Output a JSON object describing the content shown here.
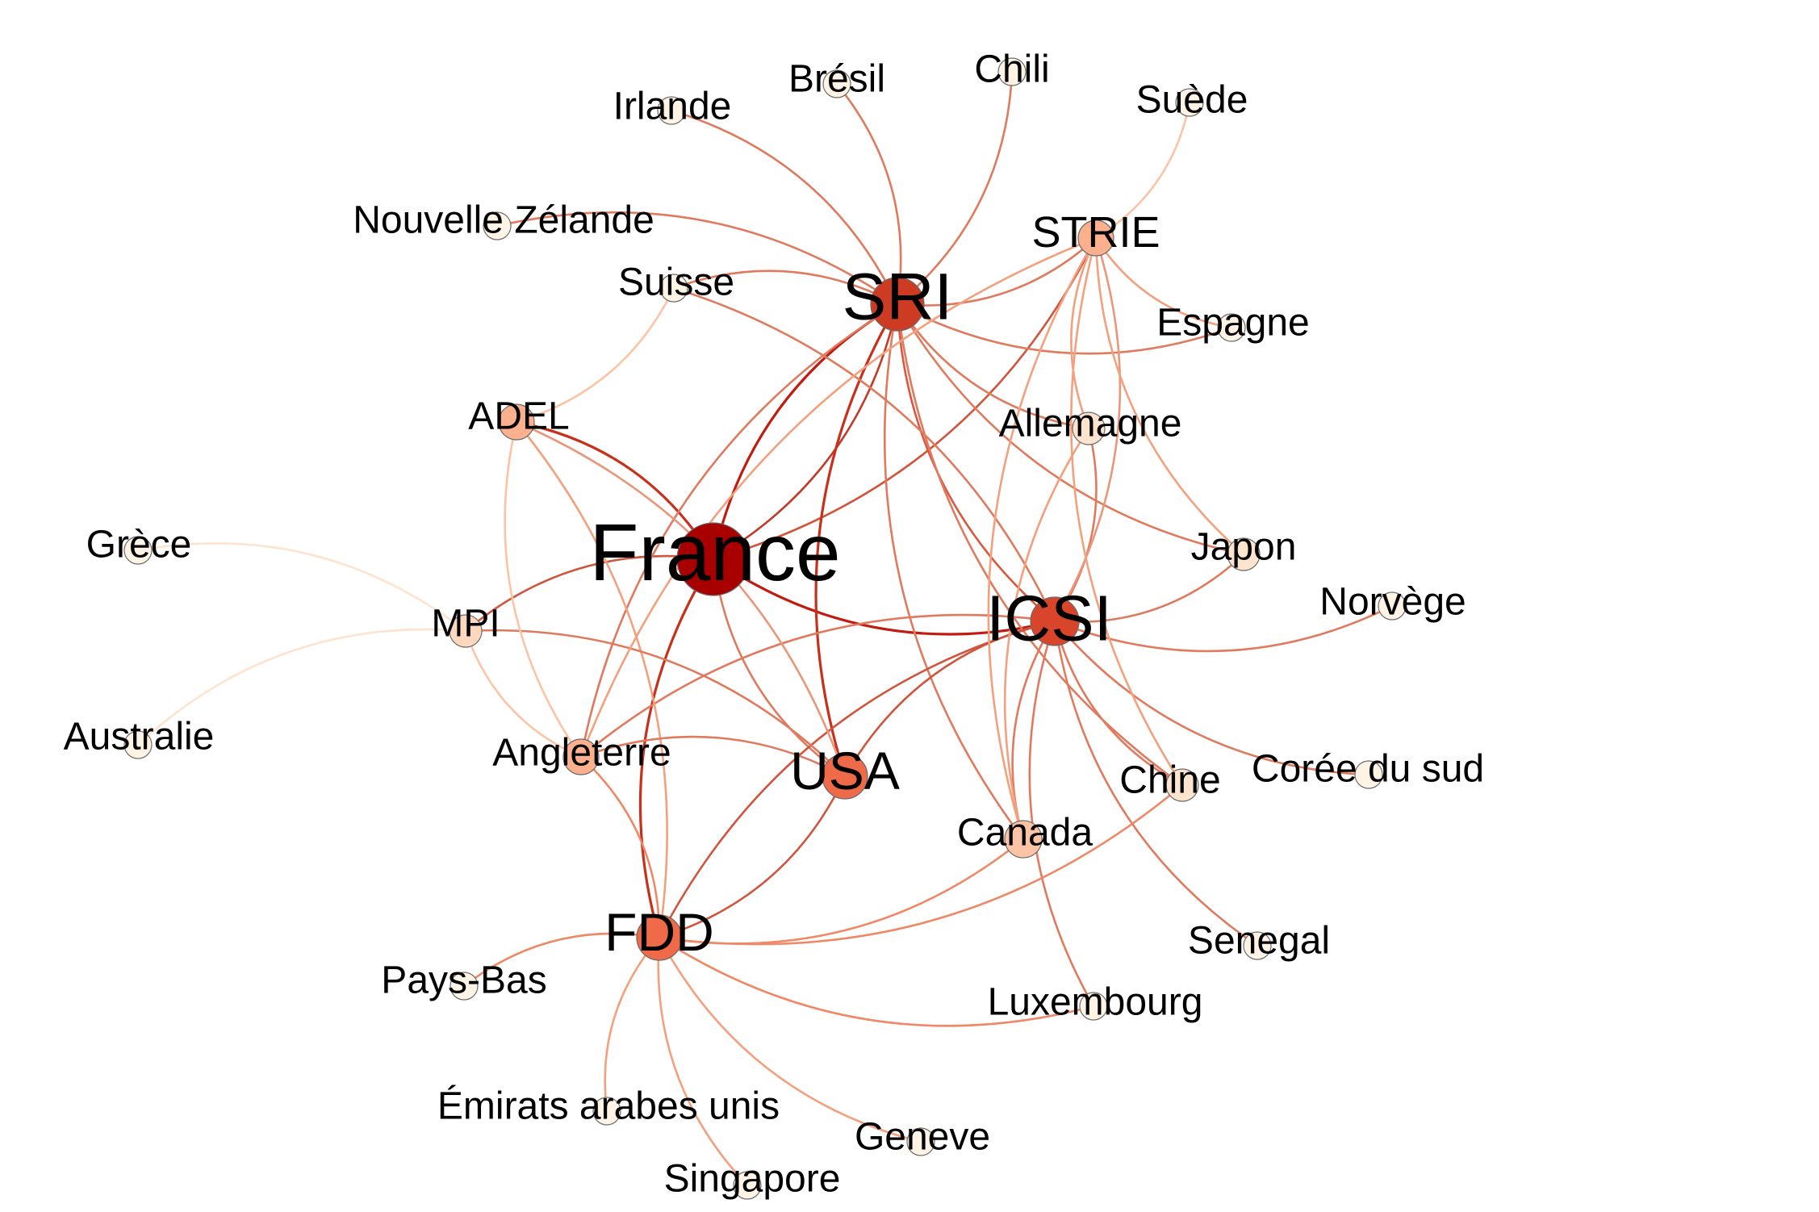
{
  "graph": {
    "nodes": [
      {
        "id": "France",
        "label": "France",
        "degree": 10,
        "color": "#a80000"
      },
      {
        "id": "SRI",
        "label": "SRI",
        "degree": 9,
        "color": "#cc3b22"
      },
      {
        "id": "ICSI",
        "label": "ICSI",
        "degree": 8,
        "color": "#d9452a"
      },
      {
        "id": "FDD",
        "label": "FDD",
        "degree": 7,
        "color": "#ee6a48"
      },
      {
        "id": "USA",
        "label": "USA",
        "degree": 6,
        "color": "#ee6a48"
      },
      {
        "id": "STRIE",
        "label": "STRIE",
        "degree": 3,
        "color": "#fcb08e"
      },
      {
        "id": "ADEL",
        "label": "ADEL",
        "degree": 3,
        "color": "#fcb08e"
      },
      {
        "id": "Angleterre",
        "label": "Angleterre",
        "degree": 3,
        "color": "#fcb08e"
      },
      {
        "id": "Canada",
        "label": "Canada",
        "degree": 3,
        "color": "#fcc4a4"
      },
      {
        "id": "MPI",
        "label": "MPI",
        "degree": 2,
        "color": "#fdd8bf"
      },
      {
        "id": "Allemagne",
        "label": "Allemagne",
        "degree": 2,
        "color": "#fee3cf"
      },
      {
        "id": "Japon",
        "label": "Japon",
        "degree": 2,
        "color": "#fee3cf"
      },
      {
        "id": "Chine",
        "label": "Chine",
        "degree": 2,
        "color": "#fee3cf"
      },
      {
        "id": "Irlande",
        "label": "Irlande",
        "degree": 1,
        "color": "#fff3e6"
      },
      {
        "id": "Bresil",
        "label": "Brésil",
        "degree": 1,
        "color": "#fff3e6"
      },
      {
        "id": "Chili",
        "label": "Chili",
        "degree": 1,
        "color": "#fff3e6"
      },
      {
        "id": "Suede",
        "label": "Suède",
        "degree": 1,
        "color": "#fff3e6"
      },
      {
        "id": "NZ",
        "label": "Nouvelle Zélande",
        "degree": 1,
        "color": "#fff3e6"
      },
      {
        "id": "Suisse",
        "label": "Suisse",
        "degree": 1,
        "color": "#fff3e6"
      },
      {
        "id": "Espagne",
        "label": "Espagne",
        "degree": 1,
        "color": "#fff3e6"
      },
      {
        "id": "Grece",
        "label": "Grèce",
        "degree": 1,
        "color": "#fff3e6"
      },
      {
        "id": "Norvege",
        "label": "Norvège",
        "degree": 1,
        "color": "#fff3e6"
      },
      {
        "id": "Australie",
        "label": "Australie",
        "degree": 1,
        "color": "#fff3e6"
      },
      {
        "id": "Coree",
        "label": "Corée du sud",
        "degree": 1,
        "color": "#fff3e6"
      },
      {
        "id": "PaysBas",
        "label": "Pays-Bas",
        "degree": 1,
        "color": "#fff3e6"
      },
      {
        "id": "Senegal",
        "label": "Senegal",
        "degree": 1,
        "color": "#fff3e6"
      },
      {
        "id": "Luxembourg",
        "label": "Luxembourg",
        "degree": 1,
        "color": "#fff3e6"
      },
      {
        "id": "Emirats",
        "label": "Émirats arabes unis",
        "degree": 1,
        "color": "#fff3e6"
      },
      {
        "id": "Geneve",
        "label": "Geneve",
        "degree": 1,
        "color": "#fff3e6"
      },
      {
        "id": "Singapore",
        "label": "Singapore",
        "degree": 1,
        "color": "#fff3e6"
      }
    ],
    "edges": [
      {
        "source": "SRI",
        "target": "France",
        "color": "#c01c10"
      },
      {
        "source": "France",
        "target": "SRI",
        "color": "#c23a28"
      },
      {
        "source": "France",
        "target": "ICSI",
        "color": "#c01c10"
      },
      {
        "source": "France",
        "target": "FDD",
        "color": "#c8301c"
      },
      {
        "source": "France",
        "target": "USA",
        "color": "#e07a5f"
      },
      {
        "source": "France",
        "target": "STRIE",
        "color": "#d1543c"
      },
      {
        "source": "France",
        "target": "ADEL",
        "color": "#c8301c"
      },
      {
        "source": "France",
        "target": "MPI",
        "color": "#d1543c"
      },
      {
        "source": "SRI",
        "target": "USA",
        "color": "#c8301c"
      },
      {
        "source": "SRI",
        "target": "ICSI",
        "color": "#d9583e"
      },
      {
        "source": "SRI",
        "target": "STRIE",
        "color": "#e07a5f"
      },
      {
        "source": "SRI",
        "target": "Irlande",
        "color": "#e07a5f"
      },
      {
        "source": "SRI",
        "target": "Bresil",
        "color": "#e07a5f"
      },
      {
        "source": "SRI",
        "target": "Chili",
        "color": "#e07a5f"
      },
      {
        "source": "SRI",
        "target": "NZ",
        "color": "#e07a5f"
      },
      {
        "source": "SRI",
        "target": "Suisse",
        "color": "#e07a5f"
      },
      {
        "source": "SRI",
        "target": "Espagne",
        "color": "#e07a5f"
      },
      {
        "source": "SRI",
        "target": "Allemagne",
        "color": "#e07a5f"
      },
      {
        "source": "SRI",
        "target": "Angleterre",
        "color": "#e07a5f"
      },
      {
        "source": "SRI",
        "target": "Japon",
        "color": "#e07a5f"
      },
      {
        "source": "SRI",
        "target": "Chine",
        "color": "#e07a5f"
      },
      {
        "source": "SRI",
        "target": "Canada",
        "color": "#e07a5f"
      },
      {
        "source": "ICSI",
        "target": "USA",
        "color": "#d1543c"
      },
      {
        "source": "ICSI",
        "target": "FDD",
        "color": "#d1543c"
      },
      {
        "source": "ICSI",
        "target": "Japon",
        "color": "#e07a5f"
      },
      {
        "source": "ICSI",
        "target": "Norvege",
        "color": "#e07a5f"
      },
      {
        "source": "ICSI",
        "target": "Coree",
        "color": "#e07a5f"
      },
      {
        "source": "ICSI",
        "target": "Chine",
        "color": "#e07a5f"
      },
      {
        "source": "ICSI",
        "target": "Canada",
        "color": "#e07a5f"
      },
      {
        "source": "ICSI",
        "target": "Senegal",
        "color": "#e07a5f"
      },
      {
        "source": "ICSI",
        "target": "Luxembourg",
        "color": "#e07a5f"
      },
      {
        "source": "ICSI",
        "target": "Allemagne",
        "color": "#e07a5f"
      },
      {
        "source": "ICSI",
        "target": "STRIE",
        "color": "#e9967a"
      },
      {
        "source": "ICSI",
        "target": "Angleterre",
        "color": "#e07a5f"
      },
      {
        "source": "ICSI",
        "target": "Suisse",
        "color": "#e07a5f"
      },
      {
        "source": "FDD",
        "target": "USA",
        "color": "#d1543c"
      },
      {
        "source": "FDD",
        "target": "Angleterre",
        "color": "#ee8866"
      },
      {
        "source": "FDD",
        "target": "PaysBas",
        "color": "#ee8866"
      },
      {
        "source": "FDD",
        "target": "Emirats",
        "color": "#f2a07e"
      },
      {
        "source": "FDD",
        "target": "Singapore",
        "color": "#f2a07e"
      },
      {
        "source": "FDD",
        "target": "Geneve",
        "color": "#f2a07e"
      },
      {
        "source": "FDD",
        "target": "Luxembourg",
        "color": "#ee8866"
      },
      {
        "source": "FDD",
        "target": "Canada",
        "color": "#ee8866"
      },
      {
        "source": "FDD",
        "target": "Chine",
        "color": "#ee8866"
      },
      {
        "source": "FDD",
        "target": "ADEL",
        "color": "#f2a07e"
      },
      {
        "source": "USA",
        "target": "Angleterre",
        "color": "#e07a5f"
      },
      {
        "source": "USA",
        "target": "MPI",
        "color": "#e07a5f"
      },
      {
        "source": "USA",
        "target": "ADEL",
        "color": "#e9967a"
      },
      {
        "source": "STRIE",
        "target": "Angleterre",
        "color": "#f2a07e"
      },
      {
        "source": "STRIE",
        "target": "Canada",
        "color": "#f2a07e"
      },
      {
        "source": "STRIE",
        "target": "Suede",
        "color": "#fcc4a4"
      },
      {
        "source": "STRIE",
        "target": "Espagne",
        "color": "#f2a07e"
      },
      {
        "source": "STRIE",
        "target": "Allemagne",
        "color": "#f2a07e"
      },
      {
        "source": "STRIE",
        "target": "Chine",
        "color": "#f2a07e"
      },
      {
        "source": "STRIE",
        "target": "Japon",
        "color": "#f2a07e"
      },
      {
        "source": "ADEL",
        "target": "Suisse",
        "color": "#fcc4a4"
      },
      {
        "source": "ADEL",
        "target": "Angleterre",
        "color": "#fcc4a4"
      },
      {
        "source": "MPI",
        "target": "Grece",
        "color": "#fee3cf"
      },
      {
        "source": "MPI",
        "target": "Australie",
        "color": "#fee3cf"
      },
      {
        "source": "MPI",
        "target": "Angleterre",
        "color": "#fcc4a4"
      },
      {
        "source": "Allemagne",
        "target": "Canada",
        "color": "#f2a07e"
      }
    ]
  }
}
